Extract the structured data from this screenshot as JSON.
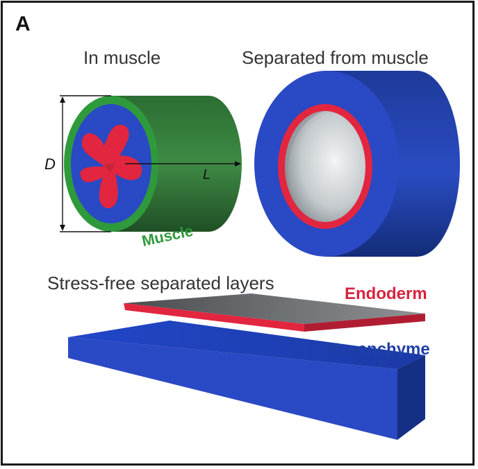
{
  "panel": {
    "letter": "A"
  },
  "titles": {
    "in_muscle": "In muscle",
    "separated": "Separated from muscle",
    "stress_free": "Stress-free separated layers"
  },
  "cylinder_labels": {
    "diameter": "D",
    "length": "L",
    "muscle": "Muscle"
  },
  "layer_labels": {
    "endoderm": "Endoderm",
    "mesenchyme": "Mesenchyme"
  },
  "colors": {
    "muscle_green": "#2f9a3c",
    "muscle_dark_green": "#1f5e2a",
    "mesenchyme_blue": "#2a49c4",
    "mesenchyme_dark_blue": "#16307e",
    "endoderm_red": "#e2263f",
    "lumen_gray": "#c9cfd3"
  }
}
